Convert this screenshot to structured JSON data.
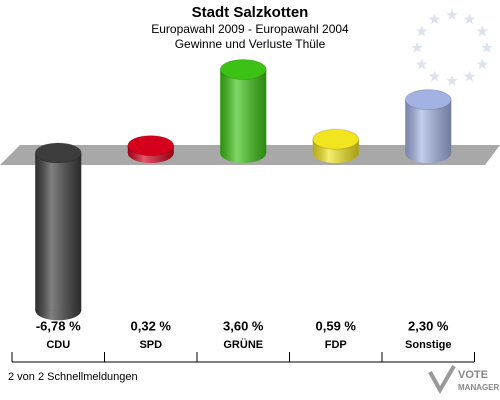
{
  "chart_data": {
    "type": "bar",
    "title": "Stadt Salzkotten",
    "subtitle": "Europawahl 2009 - Europawahl 2004",
    "subtitle2": "Gewinne und Verluste Thüle",
    "categories": [
      "CDU",
      "SPD",
      "GRÜNE",
      "FDP",
      "Sonstige"
    ],
    "values": [
      -6.78,
      0.32,
      3.6,
      0.59,
      2.3
    ],
    "value_labels": [
      "-6,78 %",
      "0,32 %",
      "3,60 %",
      "0,59 %",
      "2,30 %"
    ],
    "colors": [
      "#3c3c3c",
      "#d4001c",
      "#3cc214",
      "#f2e41e",
      "#a2b2e2"
    ],
    "footer": "2 von 2 Schnellmeldungen",
    "logo": [
      "VOTE",
      "MANAGER"
    ]
  }
}
